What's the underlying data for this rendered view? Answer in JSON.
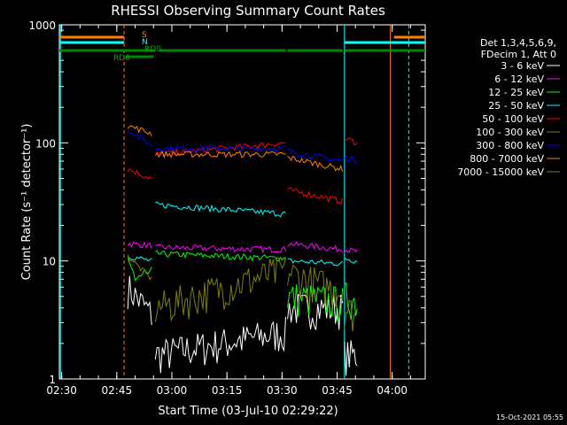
{
  "chart_data": {
    "type": "line",
    "title": "RHESSI Observing Summary Count Rates",
    "xlabel": "Start Time (03-Jul-10 02:29:22)",
    "ylabel": "Count Rate (s⁻¹ detector⁻¹)",
    "y_scale": "log",
    "ylim": [
      1,
      1000
    ],
    "xlim": [
      "02:29:22",
      "04:09:00"
    ],
    "x_tick_labels": [
      "02:30",
      "02:45",
      "03:00",
      "03:15",
      "03:30",
      "03:45",
      "04:00"
    ],
    "y_tick_labels": [
      "1",
      "10",
      "100",
      "1000"
    ],
    "legend_header": [
      "Det 1,3,4,5,6,9,",
      "FDecim 1, Att 0"
    ],
    "legend_position": "right",
    "timestamp": "15-Oct-2021 05:55",
    "flag_labels": [
      "S",
      "N",
      "RD0",
      "RD6"
    ],
    "flag_bars": [
      {
        "label": "S",
        "color": "#ff8000",
        "segments": [
          [
            "02:29:22",
            "02:47:00"
          ],
          [
            "04:00:30",
            "04:09:00"
          ]
        ]
      },
      {
        "label": "N",
        "color": "#00ffff",
        "segments": [
          [
            "02:29:22",
            "02:47:00"
          ],
          [
            "03:47:00",
            "04:09:00"
          ]
        ]
      },
      {
        "label": "RD0",
        "color": "#008800",
        "segments": [
          [
            "02:29:22",
            "02:55:30"
          ],
          [
            "02:56:30",
            "03:31:00"
          ],
          [
            "03:31:30",
            "03:46:30"
          ],
          [
            "03:47:00",
            "04:09:00"
          ]
        ]
      },
      {
        "label": "RD6",
        "color": "#008800",
        "segments": [
          [
            "02:47:30",
            "02:55:00"
          ]
        ]
      }
    ],
    "vertical_markers": [
      {
        "time": "02:29:40",
        "color": "#00ffff",
        "style": "solid"
      },
      {
        "time": "02:47:00",
        "color": "#ff8000",
        "style": "dashed"
      },
      {
        "time": "03:47:00",
        "color": "#00ffff",
        "style": "solid"
      },
      {
        "time": "03:59:30",
        "color": "#ff8000",
        "style": "solid"
      },
      {
        "time": "04:04:30",
        "color": "#00ffff",
        "style": "dashed"
      }
    ],
    "segments_x": [
      [
        "02:48:00",
        "02:54:30"
      ],
      [
        "02:55:30",
        "03:31:00"
      ],
      [
        "03:31:30",
        "03:46:30"
      ],
      [
        "03:47:00",
        "03:50:30"
      ]
    ],
    "series": [
      {
        "name": "3 - 6 keV",
        "color": "#ffffff",
        "values": [
          [
            6.0,
            3.5
          ],
          [
            1.6,
            2.5
          ],
          [
            4.0,
            4.0
          ],
          [
            1.6,
            1.6
          ]
        ]
      },
      {
        "name": "6 - 12 keV",
        "color": "#ff00ff",
        "values": [
          [
            14,
            13.5
          ],
          [
            13,
            12.5
          ],
          [
            14,
            12.5
          ],
          [
            12.5,
            12
          ]
        ]
      },
      {
        "name": "12 - 25 keV",
        "color": "#00ff00",
        "values": [
          [
            8,
            7
          ],
          [
            11.5,
            10.5
          ],
          [
            5,
            4.5
          ],
          [
            5,
            4.5
          ]
        ]
      },
      {
        "name": "25 - 50 keV",
        "color": "#00ffff",
        "values": [
          [
            11,
            10
          ],
          [
            30,
            25
          ],
          [
            10,
            9.5
          ],
          [
            10.5,
            10
          ]
        ]
      },
      {
        "name": "50 - 100 keV",
        "color": "#ff0000",
        "values": [
          [
            60,
            50
          ],
          [
            80,
            100
          ],
          [
            40,
            32
          ],
          [
            110,
            100
          ]
        ]
      },
      {
        "name": "100 - 300 keV",
        "color": "#808000",
        "values": [
          [
            11,
            7
          ],
          [
            4,
            8.5
          ],
          [
            8,
            5.5
          ],
          [
            4,
            3.5
          ]
        ]
      },
      {
        "name": "300 - 800 keV",
        "color": "#0000ff",
        "values": [
          [
            130,
            95
          ],
          [
            90,
            90
          ],
          [
            85,
            70
          ],
          [
            75,
            72
          ]
        ]
      },
      {
        "name": "800 - 7000 keV",
        "color": "#ff8000",
        "values": [
          [
            140,
            120
          ],
          [
            80,
            80
          ],
          [
            75,
            60
          ],
          [
            0,
            0
          ]
        ]
      },
      {
        "name": "7000 - 15000 keV",
        "color": "#808000",
        "values": [
          [
            0,
            0
          ],
          [
            0,
            0
          ],
          [
            0,
            0
          ],
          [
            0,
            0
          ]
        ]
      }
    ]
  }
}
